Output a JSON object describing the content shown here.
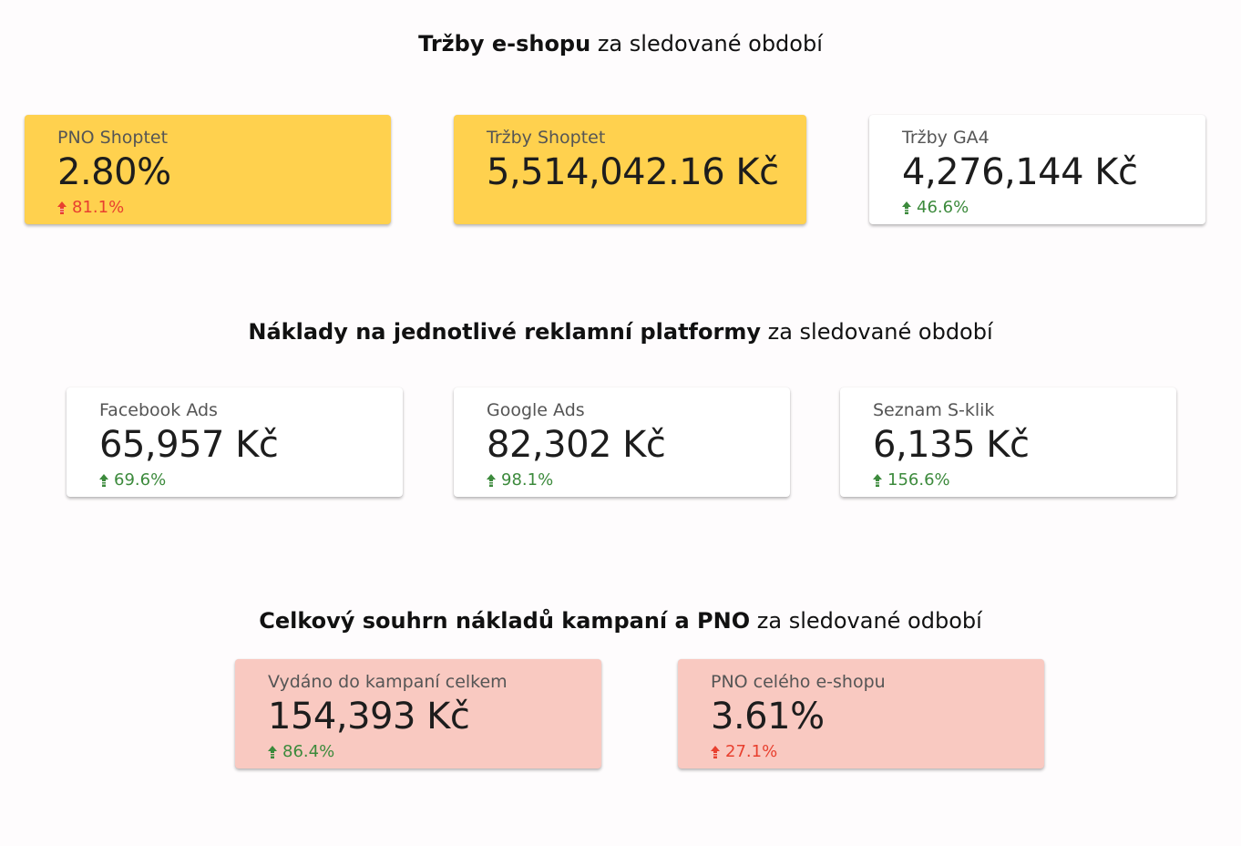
{
  "sections": [
    {
      "title_bold": "Tržby e-shopu",
      "title_rest": " za sledované období",
      "cards": [
        {
          "label": "PNO Shoptet",
          "value": "2.80%",
          "change": "81.1%",
          "change_color": "#e8402f",
          "bg": "#ffd14e"
        },
        {
          "label": "Tržby Shoptet",
          "value": "5,514,042.16 Kč",
          "change": "",
          "change_color": "",
          "bg": "#ffd14e"
        },
        {
          "label": "Tržby GA4",
          "value": "4,276,144 Kč",
          "change": "46.6%",
          "change_color": "#3c8a3c",
          "bg": "#ffffff"
        }
      ]
    },
    {
      "title_bold": "Náklady na jednotlivé reklamní platformy",
      "title_rest": " za sledované období",
      "cards": [
        {
          "label": "Facebook Ads",
          "value": "65,957 Kč",
          "change": "69.6%",
          "change_color": "#3c8a3c",
          "bg": "#ffffff"
        },
        {
          "label": "Google Ads",
          "value": "82,302 Kč",
          "change": "98.1%",
          "change_color": "#3c8a3c",
          "bg": "#ffffff"
        },
        {
          "label": "Seznam S-klik",
          "value": "6,135 Kč",
          "change": "156.6%",
          "change_color": "#3c8a3c",
          "bg": "#ffffff"
        }
      ]
    },
    {
      "title_bold": "Celkový souhrn nákladů kampaní a PNO",
      "title_rest": " za sledované odbobí",
      "cards": [
        {
          "label": "Vydáno do kampaní celkem",
          "value": "154,393 Kč",
          "change": "86.4%",
          "change_color": "#3c8a3c",
          "bg": "#f9c9c1"
        },
        {
          "label": "PNO celého e-shopu",
          "value": "3.61%",
          "change": "27.1%",
          "change_color": "#e8402f",
          "bg": "#f9c9c1"
        }
      ]
    }
  ],
  "icons": {
    "up": "arrow-up-icon"
  }
}
